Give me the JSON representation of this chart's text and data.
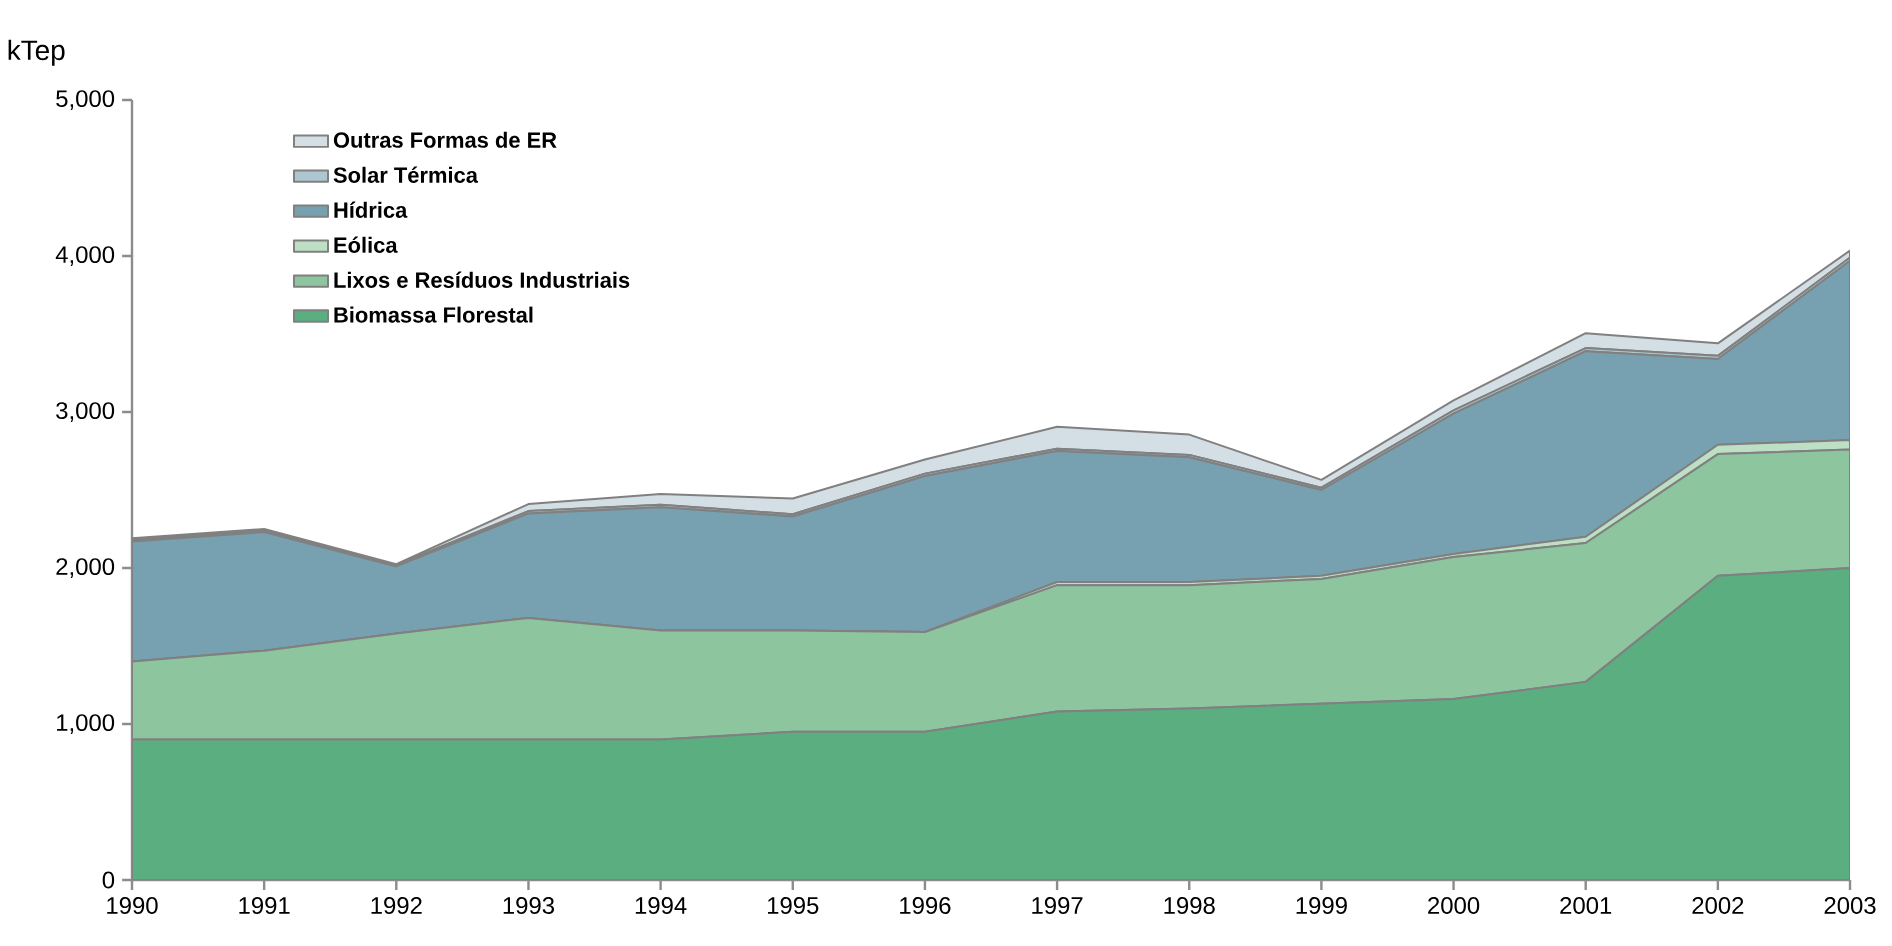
{
  "chart_data": {
    "type": "area",
    "stacked": true,
    "ylabel": "kTep",
    "x": [
      1990,
      1991,
      1992,
      1993,
      1994,
      1995,
      1996,
      1997,
      1998,
      1999,
      2000,
      2001,
      2002,
      2003
    ],
    "xlim": [
      1990,
      2003
    ],
    "xticks": [
      1990,
      1991,
      1992,
      1993,
      1994,
      1995,
      1996,
      1997,
      1998,
      1999,
      2000,
      2001,
      2002,
      2003
    ],
    "ylim": [
      0,
      5000
    ],
    "yticks": [
      0,
      {
        "value": 1000,
        "label": "1,000"
      },
      {
        "value": 2000,
        "label": "2,000"
      },
      {
        "value": 3000,
        "label": "3,000"
      },
      {
        "value": 4000,
        "label": "4,000"
      },
      {
        "value": 5000,
        "label": "5,000"
      }
    ],
    "grid": false,
    "legend": "top left",
    "series": [
      {
        "name": "Biomassa Florestal",
        "color": "#5aae80",
        "values": [
          900,
          900,
          900,
          900,
          900,
          950,
          950,
          1080,
          1100,
          1130,
          1160,
          1270,
          1950,
          2000
        ]
      },
      {
        "name": "Lixos e Resíduos Industriais",
        "color": "#8dc59e",
        "values": [
          500,
          570,
          680,
          780,
          700,
          650,
          640,
          810,
          790,
          800,
          910,
          890,
          780,
          760
        ]
      },
      {
        "name": "Eólica",
        "color": "#bde0c5",
        "values": [
          0,
          0,
          0,
          0,
          0,
          0,
          0,
          20,
          20,
          20,
          20,
          40,
          60,
          60
        ]
      },
      {
        "name": "Hídrica",
        "color": "#77a1b1",
        "values": [
          770,
          760,
          430,
          670,
          790,
          730,
          1000,
          840,
          800,
          550,
          900,
          1190,
          550,
          1150
        ]
      },
      {
        "name": "Solar Térmica",
        "color": "#adc6cf",
        "values": [
          10,
          10,
          10,
          15,
          15,
          15,
          15,
          15,
          15,
          15,
          20,
          20,
          20,
          20
        ]
      },
      {
        "name": "Outras Formas de ER",
        "color": "#d3dfe4",
        "values": [
          10,
          10,
          5,
          45,
          70,
          100,
          90,
          140,
          130,
          50,
          65,
          95,
          80,
          45
        ]
      }
    ]
  }
}
